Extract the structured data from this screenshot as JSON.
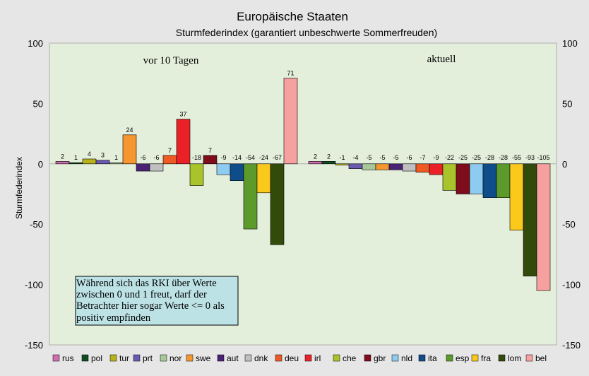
{
  "chart_data": {
    "type": "bar",
    "title": "Europäische Staaten",
    "subtitle": "Sturmfederindex (garantiert unbeschwerte Sommerfreuden)",
    "ylabel": "Sturmfederindex",
    "ylim": [
      -150,
      100
    ],
    "yticks": [
      100,
      50,
      0,
      -50,
      -100,
      -150
    ],
    "grid": false,
    "legend_position": "bottom",
    "categories": [
      "rus",
      "pol",
      "tur",
      "prt",
      "nor",
      "swe",
      "aut",
      "dnk",
      "deu",
      "irl",
      "che",
      "gbr",
      "nld",
      "ita",
      "esp",
      "fra",
      "lom",
      "bel"
    ],
    "colors": {
      "rus": "#d06fb0",
      "pol": "#0f4d24",
      "tur": "#b8b31c",
      "prt": "#6a5ab0",
      "nor": "#a8c89a",
      "swe": "#f5962e",
      "aut": "#4a2275",
      "dnk": "#c0c0c0",
      "deu": "#ef5a24",
      "irl": "#ea2228",
      "che": "#a8c42a",
      "gbr": "#7e0c1a",
      "nld": "#8ecbf0",
      "ita": "#0e4d8a",
      "esp": "#5c9a2b",
      "fra": "#fbc81c",
      "lom": "#324a0a",
      "bel": "#f7a0a0"
    },
    "groups": [
      {
        "label": "vor 10 Tagen",
        "bars": [
          {
            "cat": "rus",
            "value": 2,
            "label": "2"
          },
          {
            "cat": "pol",
            "value": 1,
            "label": "1"
          },
          {
            "cat": "tur",
            "value": 4,
            "label": "4"
          },
          {
            "cat": "prt",
            "value": 3,
            "label": "3"
          },
          {
            "cat": "nor",
            "value": 1,
            "label": "1"
          },
          {
            "cat": "swe",
            "value": 24,
            "label": "24"
          },
          {
            "cat": "aut",
            "value": -6,
            "label": "-6"
          },
          {
            "cat": "dnk",
            "value": -6,
            "label": "-6"
          },
          {
            "cat": "deu",
            "value": 7,
            "label": "7"
          },
          {
            "cat": "irl",
            "value": 37,
            "label": "37"
          },
          {
            "cat": "che",
            "value": -18,
            "label": "-18"
          },
          {
            "cat": "gbr",
            "value": 7,
            "label": "7"
          },
          {
            "cat": "nld",
            "value": -9,
            "label": "-9"
          },
          {
            "cat": "ita",
            "value": -14,
            "label": "-14"
          },
          {
            "cat": "esp",
            "value": -54,
            "label": "-54"
          },
          {
            "cat": "fra",
            "value": -24,
            "label": "-24"
          },
          {
            "cat": "lom",
            "value": -67,
            "label": "-67"
          },
          {
            "cat": "bel",
            "value": 71,
            "label": "71"
          }
        ]
      },
      {
        "label": "aktuell",
        "bars": [
          {
            "cat": "rus",
            "value": 2,
            "label": "2"
          },
          {
            "cat": "pol",
            "value": 2,
            "label": "2"
          },
          {
            "cat": "tur",
            "value": -1,
            "label": "-1"
          },
          {
            "cat": "prt",
            "value": -4,
            "label": "-4"
          },
          {
            "cat": "nor",
            "value": -5,
            "label": "-5"
          },
          {
            "cat": "swe",
            "value": -5,
            "label": "-5"
          },
          {
            "cat": "aut",
            "value": -5,
            "label": "-5"
          },
          {
            "cat": "dnk",
            "value": -6,
            "label": "-6"
          },
          {
            "cat": "deu",
            "value": -7,
            "label": "-7"
          },
          {
            "cat": "irl",
            "value": -9,
            "label": "-9"
          },
          {
            "cat": "che",
            "value": -22,
            "label": "-22"
          },
          {
            "cat": "gbr",
            "value": -25,
            "label": "-25"
          },
          {
            "cat": "nld",
            "value": -25,
            "label": "-25"
          },
          {
            "cat": "ita",
            "value": -28,
            "label": "-28"
          },
          {
            "cat": "esp",
            "value": -28,
            "label": "-28"
          },
          {
            "cat": "fra",
            "value": -55,
            "label": "-55"
          },
          {
            "cat": "lom",
            "value": -93,
            "label": "-93"
          },
          {
            "cat": "bel",
            "value": -105,
            "label": "-105"
          }
        ]
      }
    ],
    "annotation": {
      "lines": [
        "Während sich das RKI über Werte",
        "zwischen 0 und 1 freut, darf der",
        "Betrachter hier sogar Werte <= 0 als",
        "positiv empfinden"
      ]
    },
    "plot_background": "#e3efda",
    "annotation_background": "#bde2e6"
  }
}
